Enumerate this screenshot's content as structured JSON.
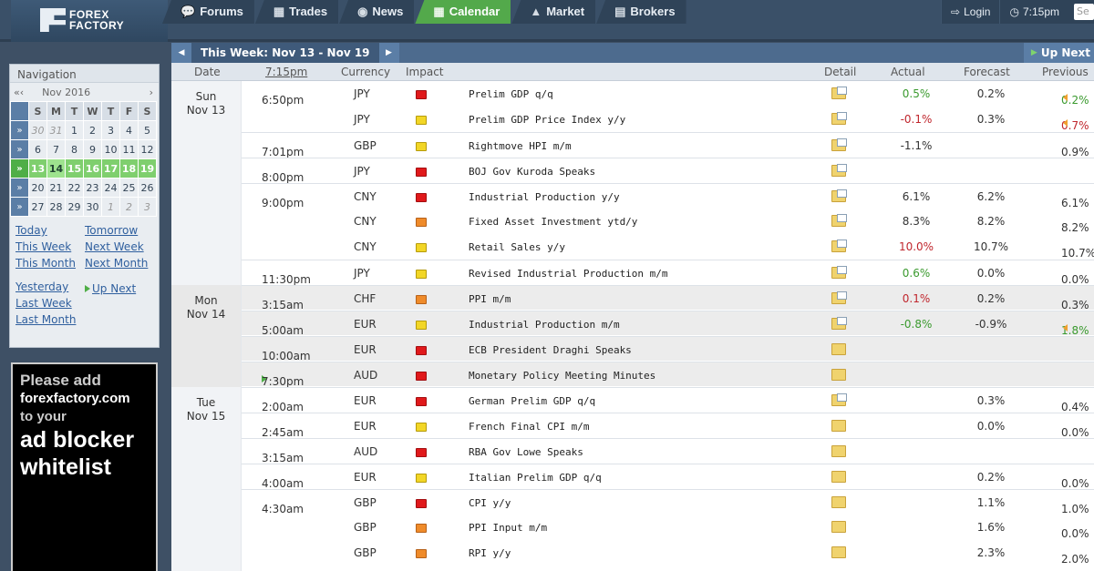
{
  "logo": {
    "line1": "FOREX",
    "line2": "FACTORY"
  },
  "nav": [
    {
      "label": "Forums",
      "icon": "chat-icon"
    },
    {
      "label": "Trades",
      "icon": "bars-icon"
    },
    {
      "label": "News",
      "icon": "globe-icon"
    },
    {
      "label": "Calendar",
      "icon": "calendar-icon"
    },
    {
      "label": "Market",
      "icon": "chart-icon"
    },
    {
      "label": "Brokers",
      "icon": "building-icon"
    }
  ],
  "topright": {
    "login": "Login",
    "time": "7:15pm",
    "search_placeholder": "Se"
  },
  "sidebar": {
    "title": "Navigation",
    "month": "Nov 2016",
    "weekdays": [
      "S",
      "M",
      "T",
      "W",
      "T",
      "F",
      "S"
    ],
    "weeks": [
      [
        "30",
        "31",
        "1",
        "2",
        "3",
        "4",
        "5"
      ],
      [
        "6",
        "7",
        "8",
        "9",
        "10",
        "11",
        "12"
      ],
      [
        "13",
        "14",
        "15",
        "16",
        "17",
        "18",
        "19"
      ],
      [
        "20",
        "21",
        "22",
        "23",
        "24",
        "25",
        "26"
      ],
      [
        "27",
        "28",
        "29",
        "30",
        "1",
        "2",
        "3"
      ]
    ],
    "links": {
      "today": "Today",
      "tomorrow": "Tomorrow",
      "this_week": "This Week",
      "next_week": "Next Week",
      "this_month": "This Month",
      "next_month": "Next Month",
      "yesterday": "Yesterday",
      "up_next": "Up Next",
      "last_week": "Last Week",
      "last_month": "Last Month"
    }
  },
  "ad": {
    "l1": "Please add",
    "l2": "forexfactory.com",
    "l3": "to your",
    "l4": "ad blocker",
    "l5": "whitelist"
  },
  "calendar": {
    "week_label": "This Week: Nov 13 - Nov 19",
    "up_next": "Up Next",
    "columns": {
      "date": "Date",
      "time": "7:15pm",
      "currency": "Currency",
      "impact": "Impact",
      "detail": "Detail",
      "actual": "Actual",
      "forecast": "Forecast",
      "previous": "Previous"
    },
    "days": [
      {
        "d1": "Sun",
        "d2": "Nov 13"
      },
      {
        "d1": "Mon",
        "d2": "Nov 14"
      },
      {
        "d1": "Tue",
        "d2": "Nov 15"
      }
    ],
    "rows": [
      {
        "time": "6:50pm",
        "cur": "JPY",
        "impact": "red",
        "event": "Prelim GDP q/q",
        "actual": "0.5%",
        "ac": "grn",
        "forecast": "0.2%",
        "previous": "0.2%",
        "pc": "grn"
      },
      {
        "time": "",
        "cur": "JPY",
        "impact": "yel",
        "event": "Prelim GDP Price Index y/y",
        "actual": "-0.1%",
        "ac": "red",
        "forecast": "0.3%",
        "previous": "0.7%",
        "pc": "red"
      },
      {
        "time": "7:01pm",
        "cur": "GBP",
        "impact": "yel",
        "event": "Rightmove HPI m/m",
        "actual": "-1.1%",
        "ac": "",
        "forecast": "",
        "previous": "0.9%",
        "pc": ""
      },
      {
        "time": "8:00pm",
        "cur": "JPY",
        "impact": "red",
        "event": "BOJ Gov Kuroda Speaks",
        "actual": "",
        "ac": "",
        "forecast": "",
        "previous": "",
        "pc": ""
      },
      {
        "time": "9:00pm",
        "cur": "CNY",
        "impact": "red",
        "event": "Industrial Production y/y",
        "actual": "6.1%",
        "ac": "",
        "forecast": "6.2%",
        "previous": "6.1%",
        "pc": ""
      },
      {
        "time": "",
        "cur": "CNY",
        "impact": "org",
        "event": "Fixed Asset Investment ytd/y",
        "actual": "8.3%",
        "ac": "",
        "forecast": "8.2%",
        "previous": "8.2%",
        "pc": ""
      },
      {
        "time": "",
        "cur": "CNY",
        "impact": "yel",
        "event": "Retail Sales y/y",
        "actual": "10.0%",
        "ac": "red",
        "forecast": "10.7%",
        "previous": "10.7%",
        "pc": ""
      },
      {
        "time": "11:30pm",
        "cur": "JPY",
        "impact": "yel",
        "event": "Revised Industrial Production m/m",
        "actual": "0.6%",
        "ac": "grn",
        "forecast": "0.0%",
        "previous": "0.0%",
        "pc": ""
      },
      {
        "time": "3:15am",
        "cur": "CHF",
        "impact": "org",
        "event": "PPI m/m",
        "actual": "0.1%",
        "ac": "red",
        "forecast": "0.2%",
        "previous": "0.3%",
        "pc": ""
      },
      {
        "time": "5:00am",
        "cur": "EUR",
        "impact": "yel",
        "event": "Industrial Production m/m",
        "actual": "-0.8%",
        "ac": "grn",
        "forecast": "-0.9%",
        "previous": "1.8%",
        "pc": "grn"
      },
      {
        "time": "10:00am",
        "cur": "EUR",
        "impact": "red",
        "event": "ECB President Draghi Speaks",
        "actual": "",
        "ac": "",
        "forecast": "",
        "previous": "",
        "pc": ""
      },
      {
        "time": "7:30pm",
        "cur": "AUD",
        "impact": "red",
        "event": "Monetary Policy Meeting Minutes",
        "actual": "",
        "ac": "",
        "forecast": "",
        "previous": "",
        "pc": ""
      },
      {
        "time": "2:00am",
        "cur": "EUR",
        "impact": "red",
        "event": "German Prelim GDP q/q",
        "actual": "",
        "ac": "",
        "forecast": "0.3%",
        "previous": "0.4%",
        "pc": ""
      },
      {
        "time": "2:45am",
        "cur": "EUR",
        "impact": "yel",
        "event": "French Final CPI m/m",
        "actual": "",
        "ac": "",
        "forecast": "0.0%",
        "previous": "0.0%",
        "pc": ""
      },
      {
        "time": "3:15am",
        "cur": "AUD",
        "impact": "red",
        "event": "RBA Gov Lowe Speaks",
        "actual": "",
        "ac": "",
        "forecast": "",
        "previous": "",
        "pc": ""
      },
      {
        "time": "4:00am",
        "cur": "EUR",
        "impact": "yel",
        "event": "Italian Prelim GDP q/q",
        "actual": "",
        "ac": "",
        "forecast": "0.2%",
        "previous": "0.0%",
        "pc": ""
      },
      {
        "time": "4:30am",
        "cur": "GBP",
        "impact": "red",
        "event": "CPI y/y",
        "actual": "",
        "ac": "",
        "forecast": "1.1%",
        "previous": "1.0%",
        "pc": ""
      },
      {
        "time": "",
        "cur": "GBP",
        "impact": "org",
        "event": "PPI Input m/m",
        "actual": "",
        "ac": "",
        "forecast": "1.6%",
        "previous": "0.0%",
        "pc": ""
      },
      {
        "time": "",
        "cur": "GBP",
        "impact": "org",
        "event": "RPI y/y",
        "actual": "",
        "ac": "",
        "forecast": "2.3%",
        "previous": "2.0%",
        "pc": ""
      }
    ]
  }
}
